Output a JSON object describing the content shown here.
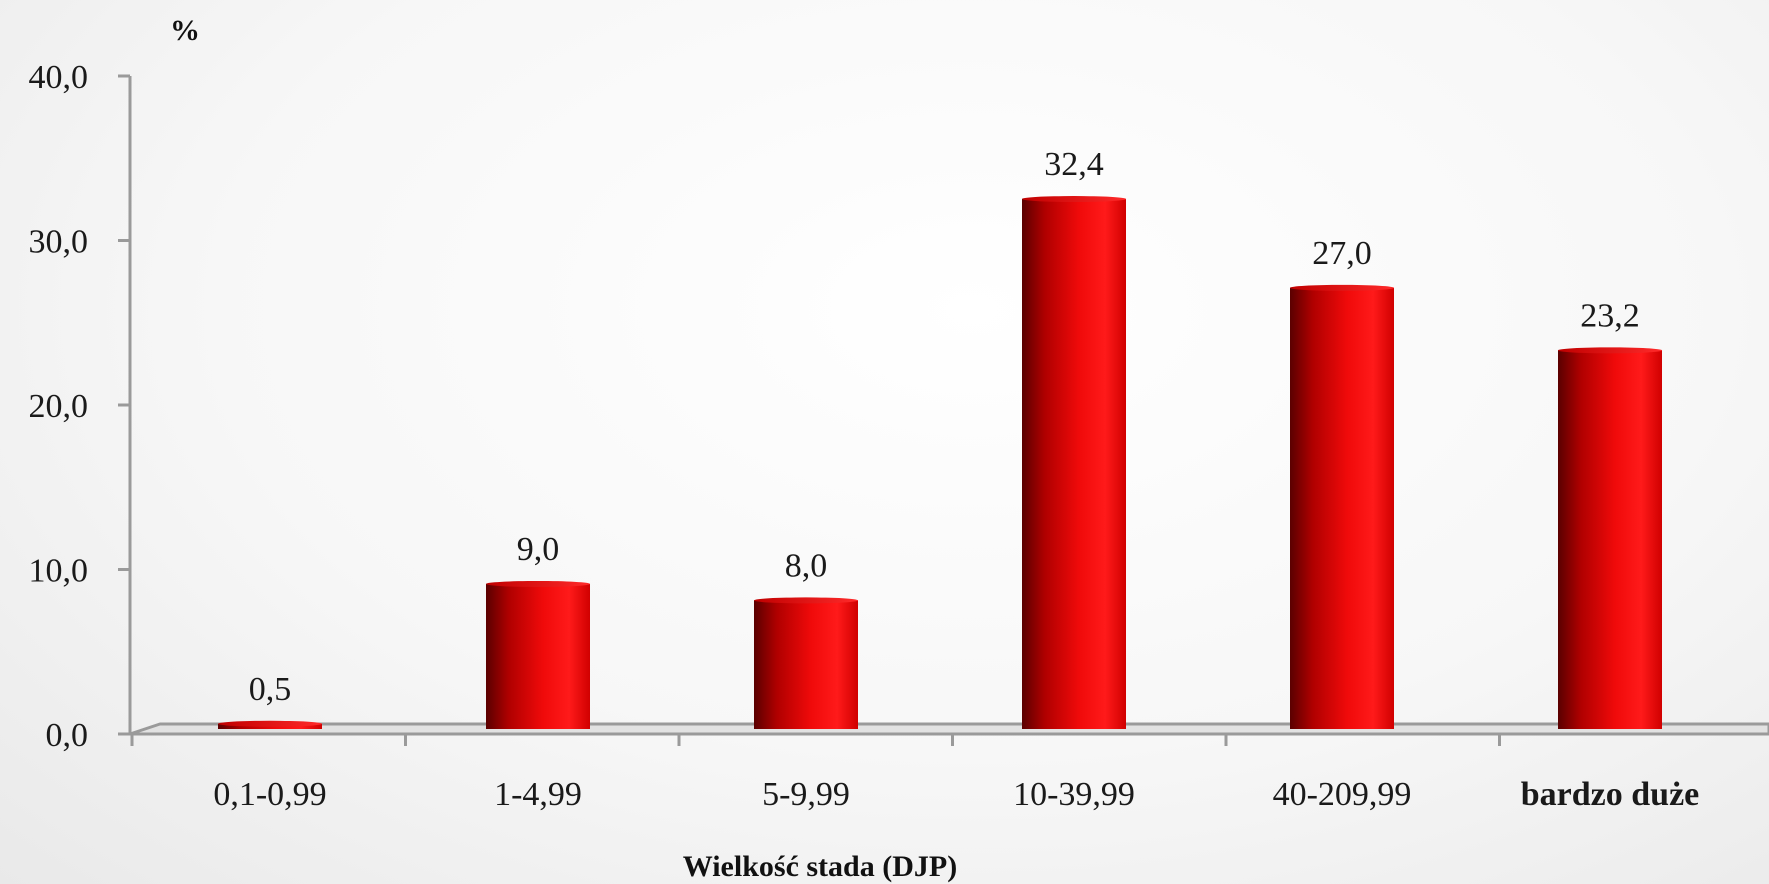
{
  "chart_data": {
    "type": "bar",
    "categories": [
      "0,1-0,99",
      "1-4,99",
      "5-9,99",
      "10-39,99",
      "40-209,99",
      "bardzo duże"
    ],
    "values": [
      0.5,
      9.0,
      8.0,
      32.4,
      27.0,
      23.2
    ],
    "value_labels": [
      "0,5",
      "9,0",
      "8,0",
      "32,4",
      "27,0",
      "23,2"
    ],
    "title": "",
    "xlabel": "Wielkość stada (DJP)",
    "ylabel": "%",
    "ylim": [
      0,
      40
    ],
    "yticks": [
      "0,0",
      "10,0",
      "20,0",
      "30,0",
      "40,0"
    ],
    "grid": false,
    "legend": "none",
    "bar_color": "#e8000b",
    "bar_color_dark": "#8a0000",
    "bold_categories": [
      5
    ]
  }
}
